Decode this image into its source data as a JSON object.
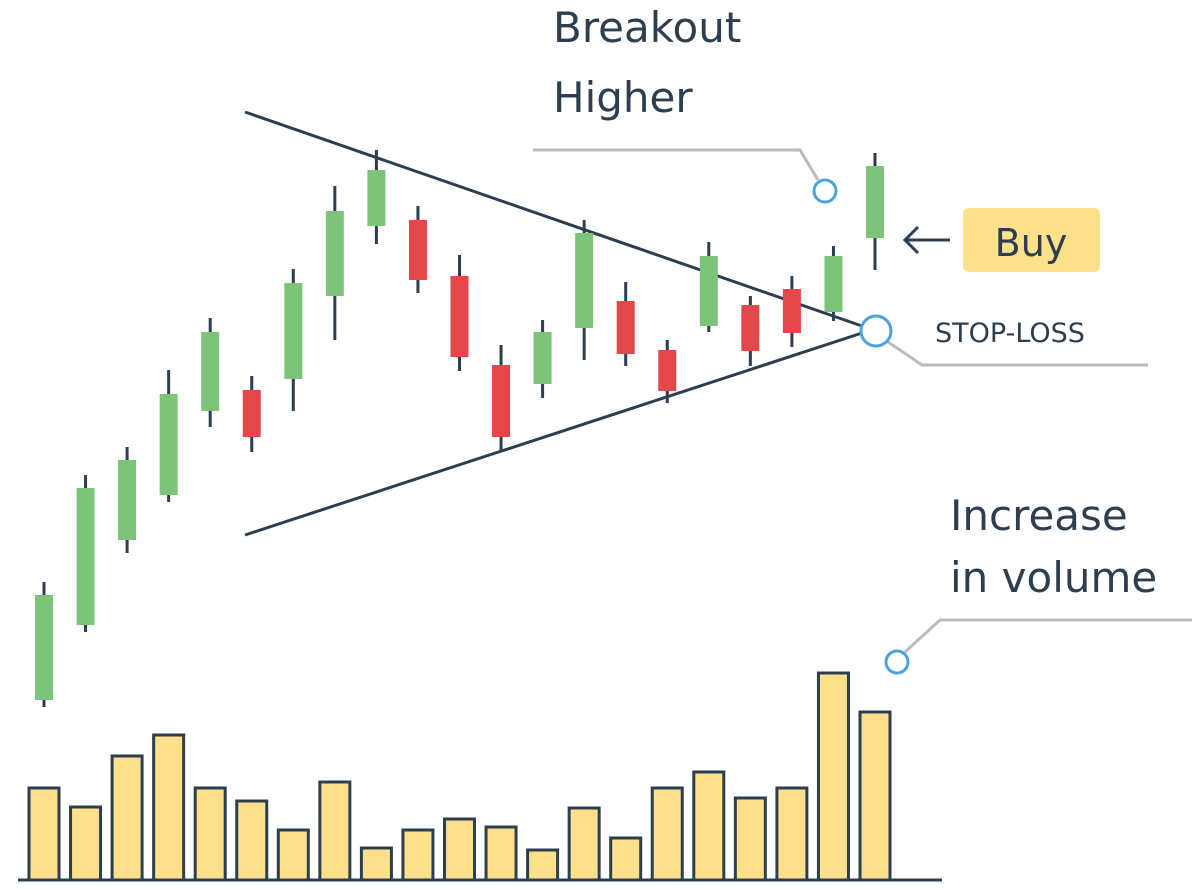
{
  "chart_data": {
    "type": "candlestick",
    "open": [
      189,
      264,
      349,
      394,
      478,
      499,
      510,
      593,
      663,
      669,
      613,
      524,
      505,
      561,
      588,
      539,
      563,
      584,
      600,
      577,
      651
    ],
    "high": [
      307,
      414,
      442,
      519,
      571,
      513,
      620,
      703,
      739,
      683,
      634,
      544,
      569,
      669,
      607,
      549,
      647,
      593,
      613,
      643,
      736
    ],
    "low": [
      182,
      257,
      336,
      387,
      462,
      437,
      478,
      549,
      645,
      596,
      518,
      439,
      491,
      529,
      523,
      486,
      557,
      523,
      542,
      568,
      619
    ],
    "close": [
      294,
      401,
      429,
      495,
      557,
      452,
      606,
      678,
      719,
      609,
      532,
      452,
      557,
      656,
      535,
      498,
      633,
      538,
      556,
      633,
      723
    ],
    "up_color": "#7cc47a",
    "down_color": "#e2474a",
    "ylim": [
      0,
      889
    ],
    "volume": {
      "values": [
        92,
        73,
        124,
        145,
        92,
        79,
        50,
        98,
        32,
        50,
        61,
        53,
        30,
        72,
        42,
        92,
        108,
        82,
        92,
        207,
        168
      ],
      "color": "#fde08a",
      "ylim": [
        0,
        220
      ]
    },
    "annotations": {
      "breakout": [
        "Breakout",
        "Higher"
      ],
      "buy": "Buy",
      "stop_loss": "STOP-LOSS",
      "volume": [
        "Increase",
        "in volume"
      ]
    }
  }
}
